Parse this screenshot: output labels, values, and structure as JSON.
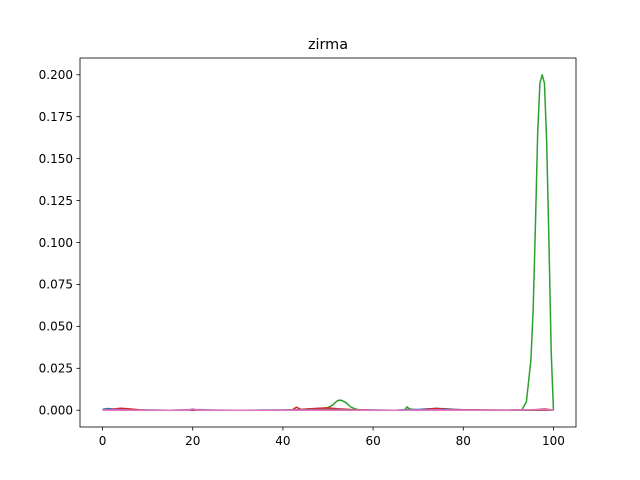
{
  "chart_data": {
    "type": "line",
    "title": "zirma",
    "xlabel": "",
    "ylabel": "",
    "xlim": [
      -5,
      105
    ],
    "ylim": [
      -0.01,
      0.21
    ],
    "xticks": [
      0,
      20,
      40,
      60,
      80,
      100
    ],
    "xtick_labels": [
      "0",
      "20",
      "40",
      "60",
      "80",
      "100"
    ],
    "yticks": [
      0.0,
      0.025,
      0.05,
      0.075,
      0.1,
      0.125,
      0.15,
      0.175,
      0.2
    ],
    "ytick_labels": [
      "0.000",
      "0.025",
      "0.050",
      "0.075",
      "0.100",
      "0.125",
      "0.150",
      "0.175",
      "0.200"
    ],
    "grid": false,
    "legend": false,
    "series": [
      {
        "color": "#1f77b4",
        "x": [
          0,
          1,
          2,
          3,
          4,
          5,
          6,
          8,
          10,
          15,
          20,
          25,
          30,
          35,
          40,
          43,
          44,
          46,
          48,
          50,
          52,
          54,
          56,
          60,
          65,
          68,
          70,
          72,
          74,
          76,
          78,
          80,
          85,
          90,
          95,
          100
        ],
        "y": [
          0.0005,
          0.001,
          0.0008,
          0.0006,
          0.0009,
          0.0007,
          0.0004,
          0.0002,
          0.0001,
          0.0,
          0.0002,
          0.0,
          0.0,
          0.0001,
          0.0001,
          0.0003,
          0.0005,
          0.0008,
          0.001,
          0.0009,
          0.0006,
          0.0003,
          0.0002,
          0.0001,
          0.0,
          0.0005,
          0.0004,
          0.0008,
          0.001,
          0.0009,
          0.0005,
          0.0003,
          0.0001,
          0.0,
          0.0001,
          0.0001
        ]
      },
      {
        "color": "#ff7f0e",
        "x": [
          0,
          2,
          4,
          6,
          8,
          10,
          20,
          30,
          40,
          44,
          46,
          48,
          50,
          52,
          54,
          56,
          60,
          70,
          72,
          74,
          76,
          80,
          90,
          95,
          98,
          100
        ],
        "y": [
          0.0,
          0.0003,
          0.0005,
          0.0003,
          0.0001,
          0.0,
          0.0,
          0.0,
          0.0,
          0.0001,
          0.0003,
          0.0005,
          0.0006,
          0.0004,
          0.0002,
          0.0001,
          0.0,
          0.0,
          0.0003,
          0.0005,
          0.0003,
          0.0001,
          0.0,
          0.0,
          0.0001,
          0.0
        ]
      },
      {
        "color": "#2ca02c",
        "x": [
          0,
          10,
          20,
          30,
          40,
          45,
          47,
          48,
          49,
          50,
          51,
          52,
          52.5,
          53,
          54,
          55,
          56,
          57,
          60,
          65,
          67,
          67.5,
          68,
          69,
          70,
          75,
          80,
          90,
          93,
          94,
          95,
          95.5,
          96,
          96.5,
          97,
          97.5,
          98,
          98.5,
          99,
          99.5,
          100
        ],
        "y": [
          0.0,
          0.0,
          0.0,
          0.0,
          0.0,
          0.0002,
          0.0006,
          0.0009,
          0.0012,
          0.0016,
          0.003,
          0.0055,
          0.006,
          0.0059,
          0.0045,
          0.002,
          0.0008,
          0.0002,
          0.0,
          0.0,
          0.0,
          0.002,
          0.001,
          0.0002,
          0.0,
          0.0,
          0.0,
          0.0,
          0.0002,
          0.005,
          0.03,
          0.06,
          0.11,
          0.165,
          0.195,
          0.2,
          0.195,
          0.16,
          0.1,
          0.035,
          0.0
        ]
      },
      {
        "color": "#d62728",
        "x": [
          0,
          2,
          4,
          6,
          8,
          10,
          20,
          30,
          40,
          42,
          43,
          44,
          46,
          48,
          50,
          52,
          55,
          60,
          70,
          72,
          74,
          76,
          80,
          90,
          96,
          98,
          100
        ],
        "y": [
          0.0,
          0.0006,
          0.0012,
          0.0008,
          0.0003,
          0.0,
          0.0,
          0.0,
          0.0,
          0.0001,
          0.0018,
          0.0004,
          0.0008,
          0.0012,
          0.0014,
          0.0009,
          0.0004,
          0.0,
          0.0,
          0.0006,
          0.0011,
          0.0006,
          0.0002,
          0.0,
          0.0003,
          0.0008,
          0.0
        ]
      },
      {
        "color": "#9467bd",
        "x": [
          0,
          2,
          4,
          6,
          8,
          10,
          15,
          20,
          25,
          30,
          35,
          40,
          45,
          50,
          55,
          60,
          65,
          70,
          75,
          80,
          85,
          90,
          95,
          100
        ],
        "y": [
          0.0002,
          0.0004,
          0.0003,
          0.0001,
          0.0,
          0.0001,
          0.0,
          0.0004,
          0.0001,
          0.0,
          0.0,
          0.0001,
          0.0003,
          0.0004,
          0.0002,
          0.0001,
          0.0,
          0.0002,
          0.0003,
          0.0001,
          0.0,
          0.0001,
          0.0002,
          0.0001
        ]
      },
      {
        "color": "#8c564b",
        "x": [
          0,
          10,
          20,
          30,
          40,
          45,
          50,
          55,
          60,
          70,
          80,
          90,
          100
        ],
        "y": [
          0.0,
          0.0,
          0.0,
          0.0,
          0.0,
          0.0002,
          0.0003,
          0.0002,
          0.0,
          0.0,
          0.0,
          0.0,
          0.0
        ]
      },
      {
        "color": "#e377c2",
        "x": [
          0,
          10,
          19,
          20,
          21,
          30,
          40,
          50,
          60,
          70,
          80,
          90,
          98,
          100
        ],
        "y": [
          0.0,
          0.0,
          0.0,
          0.0008,
          0.0,
          0.0,
          0.0,
          0.0,
          0.0,
          0.0,
          0.0,
          0.0,
          0.0005,
          0.0
        ]
      }
    ]
  }
}
